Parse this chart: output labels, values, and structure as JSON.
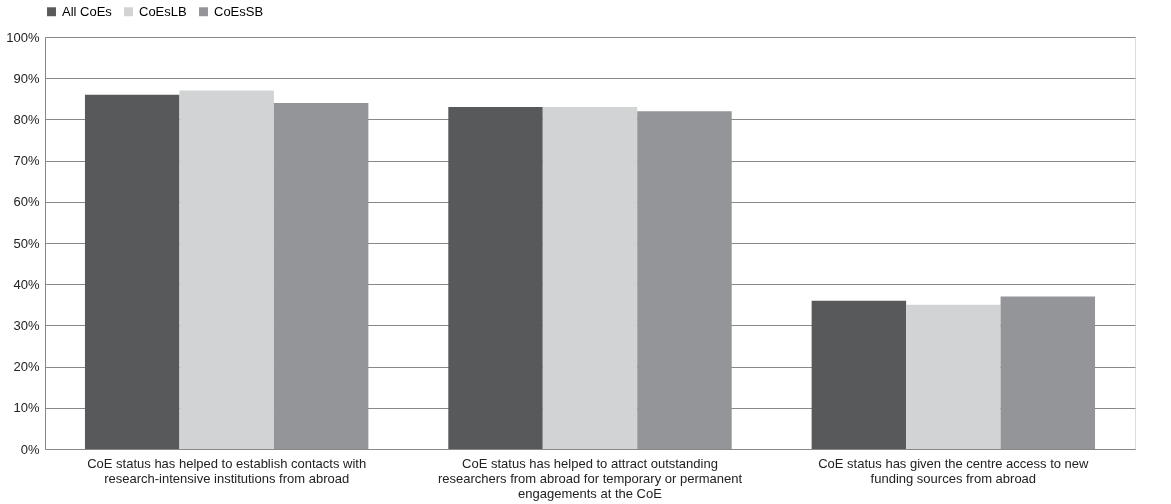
{
  "chart_data": {
    "type": "bar",
    "categories": [
      "CoE status has helped to establish contacts with research-intensive institutions from abroad",
      "CoE status has helped to attract outstanding researchers from abroad for temporary or permanent engagements at the CoE",
      "CoE status has given the centre access to new funding sources from abroad"
    ],
    "series": [
      {
        "name": "All CoEs",
        "color": "#58595b",
        "values": [
          86,
          83,
          36
        ]
      },
      {
        "name": "CoEsLB",
        "color": "#d1d3d4",
        "values": [
          87,
          83,
          35
        ]
      },
      {
        "name": "CoEsSB",
        "color": "#939598",
        "values": [
          84,
          82,
          37
        ]
      }
    ],
    "ylim": [
      0,
      100
    ],
    "yticks": [
      {
        "value": 0,
        "label": "0%"
      },
      {
        "value": 10,
        "label": "10%"
      },
      {
        "value": 20,
        "label": "20%"
      },
      {
        "value": 30,
        "label": "30%"
      },
      {
        "value": 40,
        "label": "40%"
      },
      {
        "value": 50,
        "label": "50%"
      },
      {
        "value": 60,
        "label": "60%"
      },
      {
        "value": 70,
        "label": "70%"
      },
      {
        "value": 80,
        "label": "80%"
      },
      {
        "value": 90,
        "label": "90%"
      },
      {
        "value": 100,
        "label": "100%"
      }
    ],
    "grid": "y",
    "legend": "top"
  }
}
